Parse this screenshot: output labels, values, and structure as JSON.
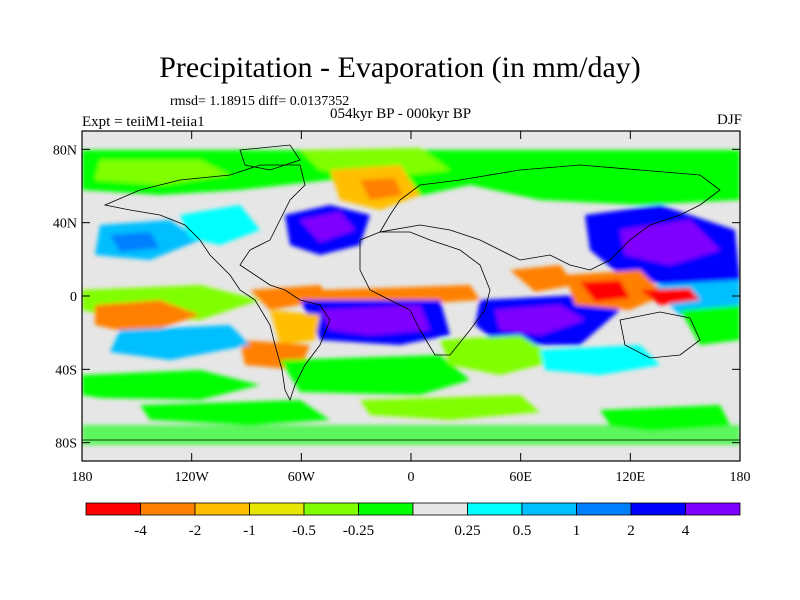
{
  "title": "Precipitation - Evaporation (in mm/day)",
  "stats": "rmsd= 1.18915 diff= 0.0137352",
  "experiment": "Expt = teiiM1-teiia1",
  "period": "054kyr BP - 000kyr BP",
  "season": "DJF",
  "map": {
    "lon_range": [
      -180,
      180
    ],
    "lat_range": [
      -90,
      90
    ],
    "land_color": "#e6e6e6",
    "y_ticks": [
      {
        "label": "80N",
        "lat": 80
      },
      {
        "label": "40N",
        "lat": 40
      },
      {
        "label": "0",
        "lat": 0
      },
      {
        "label": "40S",
        "lat": -40
      },
      {
        "label": "80S",
        "lat": -80
      }
    ],
    "x_ticks": [
      {
        "label": "180",
        "lon": -180
      },
      {
        "label": "120W",
        "lon": -120
      },
      {
        "label": "60W",
        "lon": -60
      },
      {
        "label": "0",
        "lon": 0
      },
      {
        "label": "60E",
        "lon": 60
      },
      {
        "label": "120E",
        "lon": 120
      },
      {
        "label": "180",
        "lon": 180
      }
    ]
  },
  "colorbar": {
    "colors": [
      "#ff0000",
      "#ff8000",
      "#ffbf00",
      "#e6e600",
      "#80ff00",
      "#00ff00",
      "#e6e6e6",
      "#00ffff",
      "#00bfff",
      "#0080ff",
      "#0000ff",
      "#8000ff"
    ],
    "labels": [
      "-4",
      "-2",
      "-1",
      "-0.5",
      "-0.25",
      "0.25",
      "0.5",
      "1",
      "2",
      "4"
    ]
  }
}
